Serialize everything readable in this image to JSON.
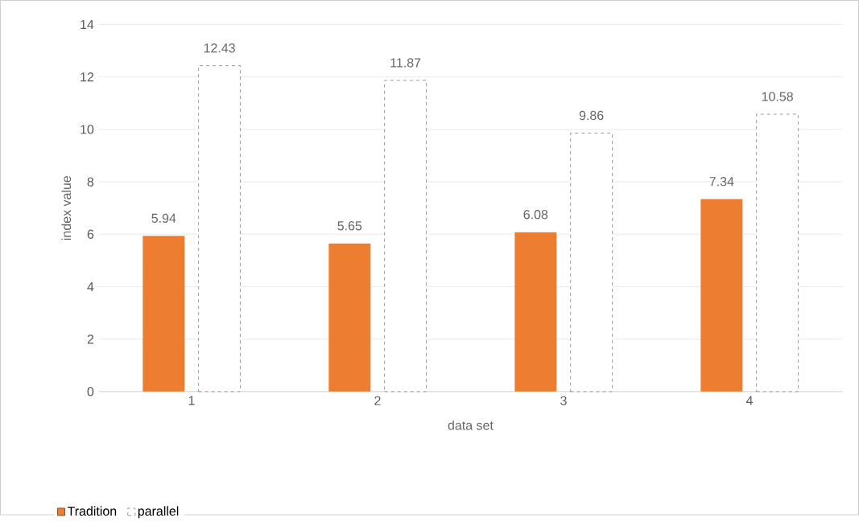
{
  "chart_data": {
    "type": "bar",
    "xlabel": "data set",
    "ylabel": "index value",
    "categories": [
      "1",
      "2",
      "3",
      "4"
    ],
    "series": [
      {
        "name": "Tradition",
        "color": "#ed7d31",
        "values": [
          5.94,
          5.65,
          6.08,
          7.34
        ]
      },
      {
        "name": "parallel",
        "color": "#404040",
        "values": [
          12.43,
          11.87,
          9.86,
          10.58
        ]
      }
    ],
    "ylim": [
      0,
      14
    ],
    "yticks": [
      0,
      2,
      4,
      6,
      8,
      10,
      12,
      14
    ],
    "grid": "y",
    "legend": "bottom left",
    "data_labels": true
  }
}
